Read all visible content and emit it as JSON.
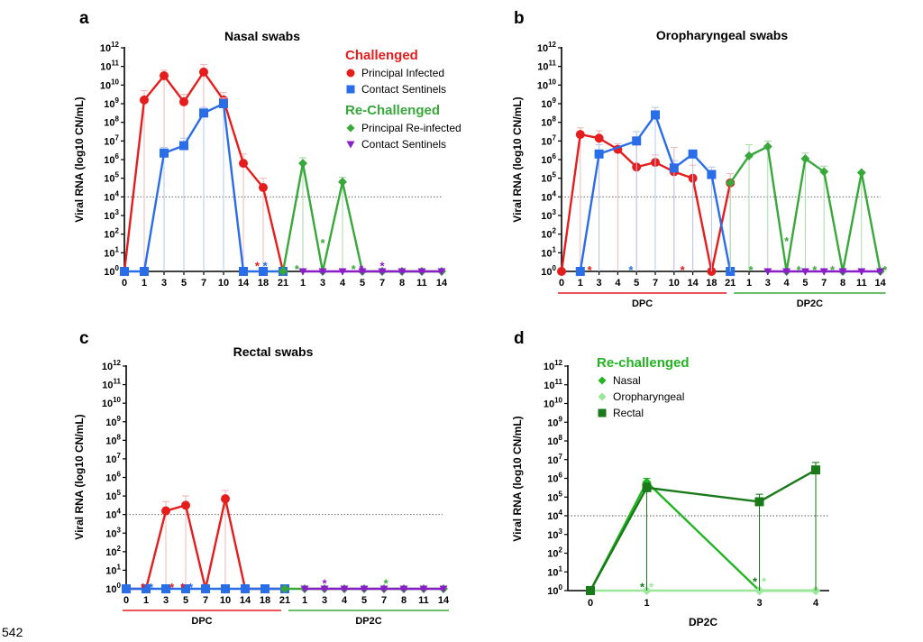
{
  "footer_number": "542",
  "colors": {
    "red": "#e51d1d",
    "blue": "#2a6de9",
    "green": "#38a83a",
    "purple": "#8a1fc8",
    "red_light": "#f2b8b8",
    "blue_light": "#b6c9f0",
    "green_light": "#a7d8a8",
    "recha_green": "#22b522",
    "oro_green": "#9be89b",
    "rectal_green": "#1a7a1a"
  },
  "chart_data": [
    {
      "id": "a",
      "letter": "a",
      "type": "line",
      "title": "Nasal swabs",
      "ylabel": "Viral RNA (log10 CN/mL)",
      "y_scale": "log10",
      "ylim_exponent": [
        0,
        12
      ],
      "threshold": 10000,
      "x_tick_labels": [
        "0",
        "1",
        "3",
        "5",
        "7",
        "10",
        "14",
        "18",
        "21",
        "1",
        "3",
        "4",
        "5",
        "7",
        "8",
        "11",
        "14"
      ],
      "series": [
        {
          "name": "Principal Infected",
          "color": "red",
          "marker": "circle",
          "x_idx": [
            0,
            1,
            2,
            3,
            4,
            5,
            6,
            7,
            8
          ],
          "y_exp": [
            0,
            9.2,
            10.5,
            9.1,
            10.7,
            9.2,
            5.8,
            4.5,
            0
          ],
          "err_exp": [
            null,
            0.5,
            0.3,
            0.4,
            0.4,
            0.4,
            0.5,
            0.5,
            null
          ]
        },
        {
          "name": "Contact Sentinels",
          "color": "blue",
          "marker": "square",
          "x_idx": [
            0,
            1,
            2,
            3,
            4,
            5,
            6,
            7,
            8
          ],
          "y_exp": [
            0,
            0,
            6.35,
            6.75,
            8.5,
            9.0,
            0,
            0,
            0
          ],
          "err_exp": [
            null,
            null,
            0.3,
            0.4,
            0.3,
            0.3,
            null,
            null,
            null
          ]
        },
        {
          "name": "Principal Re-infected",
          "color": "green",
          "marker": "diamond",
          "x_idx": [
            8,
            9,
            10,
            11,
            12,
            13,
            14,
            15,
            16
          ],
          "y_exp": [
            0,
            5.8,
            0,
            4.8,
            0,
            0,
            0,
            0,
            0
          ],
          "err_exp": [
            null,
            0.3,
            null,
            0.25,
            null,
            null,
            null,
            null,
            null
          ]
        },
        {
          "name": "Contact Sentinels",
          "color": "purple",
          "marker": "triangle-down",
          "x_idx": [
            9,
            10,
            11,
            12,
            13,
            14,
            15,
            16
          ],
          "y_exp": [
            0,
            0,
            0,
            0,
            0,
            0,
            0,
            0
          ],
          "err_exp": [
            null,
            null,
            null,
            null,
            null,
            null,
            null,
            null
          ]
        }
      ],
      "stars": [
        {
          "x_idx": 6.7,
          "y_exp": 0.45,
          "color": "red"
        },
        {
          "x_idx": 7.1,
          "y_exp": 0.45,
          "color": "blue"
        },
        {
          "x_idx": 8.7,
          "y_exp": 0.3,
          "color": "green"
        },
        {
          "x_idx": 10,
          "y_exp": 1.7,
          "color": "green"
        },
        {
          "x_idx": 11.55,
          "y_exp": 0.3,
          "color": "green"
        },
        {
          "x_idx": 11.95,
          "y_exp": 0.3,
          "color": "purple"
        },
        {
          "x_idx": 13,
          "y_exp": 0.45,
          "color": "purple"
        }
      ],
      "legend": {
        "groups": [
          {
            "heading": "Challenged",
            "color": "red",
            "items": [
              {
                "label": "Principal Infected",
                "color": "red",
                "marker": "circle"
              },
              {
                "label": "Contact Sentinels",
                "color": "blue",
                "marker": "square"
              }
            ]
          },
          {
            "heading": "Re-Challenged",
            "color": "green",
            "items": [
              {
                "label": "Principal Re-infected",
                "color": "green",
                "marker": "diamond"
              },
              {
                "label": "Contact Sentinels",
                "color": "purple",
                "marker": "triangle-down"
              }
            ]
          }
        ]
      }
    },
    {
      "id": "b",
      "letter": "b",
      "type": "line",
      "title": "Oropharyngeal swabs",
      "ylabel": "Viral RNA (log10 CN/mL)",
      "y_scale": "log10",
      "ylim_exponent": [
        0,
        12
      ],
      "threshold": 10000,
      "x_tick_labels": [
        "0",
        "1",
        "3",
        "4",
        "5",
        "7",
        "10",
        "14",
        "18",
        "21",
        "1",
        "3",
        "4",
        "5",
        "7",
        "8",
        "11",
        "14"
      ],
      "brackets": [
        {
          "label": "DPC",
          "color": "red",
          "from_idx": 0,
          "to_idx": 9
        },
        {
          "label": "DP2C",
          "color": "green",
          "from_idx": 9,
          "to_idx": 17
        }
      ],
      "series": [
        {
          "name": "Principal Infected",
          "color": "red",
          "marker": "circle",
          "x_idx": [
            0,
            1,
            2,
            3,
            4,
            5,
            6,
            7,
            8,
            9
          ],
          "y_exp": [
            0,
            7.35,
            7.15,
            6.55,
            5.6,
            5.85,
            5.35,
            5.0,
            0,
            4.75
          ],
          "err_exp": [
            null,
            0.35,
            0.4,
            0.3,
            1.3,
            0.4,
            1.3,
            0.7,
            null,
            0.5
          ]
        },
        {
          "name": "Contact Sentinels",
          "color": "blue",
          "marker": "square",
          "x_idx": [
            1,
            2,
            3,
            4,
            5,
            6,
            7,
            8,
            9
          ],
          "y_exp": [
            0,
            6.3,
            null,
            7.0,
            8.4,
            5.55,
            6.3,
            5.2,
            0
          ],
          "err_exp": [
            null,
            0.5,
            null,
            0.5,
            0.4,
            0.4,
            null,
            0.4,
            null
          ]
        },
        {
          "name": "Principal Re-infected",
          "color": "green",
          "marker": "diamond",
          "x_idx": [
            9,
            10,
            11,
            12,
            13,
            14,
            15,
            16,
            17
          ],
          "y_exp": [
            4.75,
            6.2,
            6.7,
            0,
            6.05,
            5.35,
            0,
            5.3,
            0
          ],
          "err_exp": [
            null,
            0.6,
            0.3,
            null,
            0.3,
            0.3,
            null,
            null,
            null
          ]
        },
        {
          "name": "Contact Sentinels",
          "color": "purple",
          "marker": "triangle-down",
          "x_idx": [
            11,
            12,
            13,
            14,
            15,
            16,
            17
          ],
          "y_exp": [
            0,
            0,
            0,
            0,
            0,
            0,
            0
          ],
          "err_exp": [
            null,
            null,
            null,
            null,
            null,
            null,
            null
          ]
        }
      ],
      "stars": [
        {
          "x_idx": 1.5,
          "y_exp": 0.25,
          "color": "red"
        },
        {
          "x_idx": 3.7,
          "y_exp": 0.25,
          "color": "blue"
        },
        {
          "x_idx": 6.45,
          "y_exp": 0.25,
          "color": "red"
        },
        {
          "x_idx": 10.1,
          "y_exp": 0.25,
          "color": "green"
        },
        {
          "x_idx": 12,
          "y_exp": 1.8,
          "color": "green"
        },
        {
          "x_idx": 12.65,
          "y_exp": 0.25,
          "color": "green"
        },
        {
          "x_idx": 13.5,
          "y_exp": 0.25,
          "color": "green"
        },
        {
          "x_idx": 14.45,
          "y_exp": 0.25,
          "color": "green"
        },
        {
          "x_idx": 17.25,
          "y_exp": 0.25,
          "color": "green"
        }
      ]
    },
    {
      "id": "c",
      "letter": "c",
      "type": "line",
      "title": "Rectal swabs",
      "ylabel": "Viral RNA (log10 CN/mL)",
      "y_scale": "log10",
      "ylim_exponent": [
        0,
        12
      ],
      "threshold": 10000,
      "x_tick_labels": [
        "0",
        "1",
        "3",
        "5",
        "7",
        "10",
        "14",
        "18",
        "21",
        "1",
        "3",
        "4",
        "5",
        "7",
        "8",
        "11",
        "14"
      ],
      "brackets": [
        {
          "label": "DPC",
          "color": "red",
          "from_idx": 0,
          "to_idx": 8
        },
        {
          "label": "DP2C",
          "color": "green",
          "from_idx": 8,
          "to_idx": 16
        }
      ],
      "series": [
        {
          "name": "Principal Infected",
          "color": "red",
          "marker": "circle",
          "x_idx": [
            0,
            1,
            2,
            3,
            4,
            5,
            6,
            7,
            8
          ],
          "y_exp": [
            0,
            0,
            4.2,
            4.5,
            0,
            4.85,
            0,
            0,
            0
          ],
          "err_exp": [
            null,
            null,
            0.5,
            0.5,
            null,
            0.45,
            null,
            null,
            null
          ]
        },
        {
          "name": "Contact Sentinels",
          "color": "blue",
          "marker": "square",
          "x_idx": [
            0,
            1,
            2,
            3,
            4,
            5,
            6,
            7,
            8
          ],
          "y_exp": [
            0,
            0,
            0,
            0,
            0,
            0,
            0,
            0,
            0
          ],
          "err_exp": [
            null,
            null,
            null,
            null,
            null,
            null,
            null,
            null,
            null
          ]
        },
        {
          "name": "Principal Re-infected",
          "color": "green",
          "marker": "diamond",
          "x_idx": [
            8,
            9,
            10,
            11,
            12,
            13,
            14,
            15,
            16
          ],
          "y_exp": [
            0,
            0,
            0,
            0,
            0,
            0,
            0,
            0,
            0
          ],
          "err_exp": [
            null,
            null,
            null,
            null,
            null,
            null,
            null,
            null,
            null
          ]
        },
        {
          "name": "Contact Sentinels",
          "color": "purple",
          "marker": "triangle-down",
          "x_idx": [
            9,
            10,
            11,
            12,
            13,
            14,
            15,
            16
          ],
          "y_exp": [
            0,
            0,
            0,
            0,
            0,
            0,
            0,
            0
          ],
          "err_exp": [
            null,
            null,
            null,
            null,
            null,
            null,
            null,
            null
          ]
        }
      ],
      "stars": [
        {
          "x_idx": 0.85,
          "y_exp": 0.25,
          "color": "red"
        },
        {
          "x_idx": 1.25,
          "y_exp": 0.25,
          "color": "blue"
        },
        {
          "x_idx": 2.3,
          "y_exp": 0.25,
          "color": "red"
        },
        {
          "x_idx": 2.85,
          "y_exp": 0.25,
          "color": "red"
        },
        {
          "x_idx": 3.25,
          "y_exp": 0.25,
          "color": "blue"
        },
        {
          "x_idx": 10,
          "y_exp": 0.45,
          "color": "purple"
        },
        {
          "x_idx": 13.1,
          "y_exp": 0.45,
          "color": "green"
        }
      ]
    },
    {
      "id": "d",
      "letter": "d",
      "type": "line",
      "title": "",
      "ylabel": "Viral RNA (log10 CN/mL)",
      "xlabel": "DP2C",
      "y_scale": "log10",
      "ylim_exponent": [
        0,
        12
      ],
      "threshold": 10000,
      "x_values": [
        0,
        1,
        3,
        4
      ],
      "x_tick_labels": [
        "0",
        "1",
        "3",
        "4"
      ],
      "series": [
        {
          "name": "Nasal",
          "color": "recha_green",
          "marker": "diamond",
          "y_exp": [
            0,
            5.8,
            0,
            0
          ],
          "err_exp": [
            null,
            0.2,
            null,
            null
          ]
        },
        {
          "name": "Oropharyngeal",
          "color": "oro_green",
          "marker": "diamond",
          "y_exp": [
            0,
            0,
            0,
            0
          ],
          "err_exp": [
            null,
            null,
            null,
            null
          ]
        },
        {
          "name": "Rectal",
          "color": "rectal_green",
          "marker": "square",
          "y_exp": [
            0,
            5.5,
            4.75,
            6.45
          ],
          "err_exp": [
            null,
            0.25,
            0.4,
            0.4
          ]
        }
      ],
      "stars": [
        {
          "x": 0.92,
          "y_exp": 0.35,
          "color": "rectal_green"
        },
        {
          "x": 1.08,
          "y_exp": 0.35,
          "color": "oro_green"
        },
        {
          "x": 2.92,
          "y_exp": 0.65,
          "color": "rectal_green"
        },
        {
          "x": 3.08,
          "y_exp": 0.65,
          "color": "oro_green"
        }
      ],
      "legend": {
        "groups": [
          {
            "heading": "Re-challenged",
            "color": "recha_green",
            "items": [
              {
                "label": "Nasal",
                "color": "recha_green",
                "marker": "diamond"
              },
              {
                "label": "Oropharyngeal",
                "color": "oro_green",
                "marker": "diamond"
              },
              {
                "label": "Rectal",
                "color": "rectal_green",
                "marker": "square"
              }
            ]
          }
        ]
      }
    }
  ]
}
